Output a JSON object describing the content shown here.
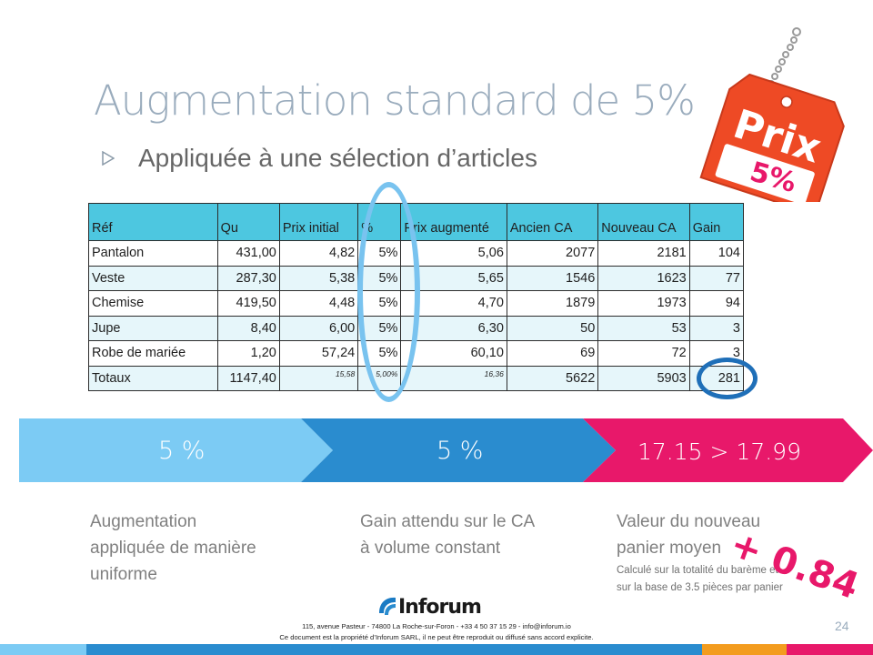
{
  "slide": {
    "title": "Augmentation standard de 5%",
    "subtitle": "Appliquée à une sélection d’articles",
    "page_number": "24"
  },
  "price_tag": {
    "word": "Prix",
    "value": "5%"
  },
  "table": {
    "headers": [
      "Réf",
      "Qu",
      "Prix initial",
      "%",
      "Prix augmenté",
      "Ancien CA",
      "Nouveau CA",
      "Gain"
    ],
    "rows": [
      [
        "Pantalon",
        "431,00",
        "4,82",
        "5%",
        "5,06",
        "2077",
        "2181",
        "104"
      ],
      [
        "Veste",
        "287,30",
        "5,38",
        "5%",
        "5,65",
        "1546",
        "1623",
        "77"
      ],
      [
        "Chemise",
        "419,50",
        "4,48",
        "5%",
        "4,70",
        "1879",
        "1973",
        "94"
      ],
      [
        "Jupe",
        "8,40",
        "6,00",
        "5%",
        "6,30",
        "50",
        "53",
        "3"
      ],
      [
        "Robe de mariée",
        "1,20",
        "57,24",
        "5%",
        "60,10",
        "69",
        "72",
        "3"
      ]
    ],
    "totals": [
      "Totaux",
      "1147,40",
      "15,58",
      "5,00%",
      "16,36",
      "5622",
      "5903",
      "281"
    ]
  },
  "banner": [
    {
      "label": "5 %",
      "color": "#7ccbf4"
    },
    {
      "label": "5 %",
      "color": "#2a8ccf"
    },
    {
      "label": "17.15 > 17.99",
      "color": "#e8186a"
    }
  ],
  "descriptions": {
    "col1": [
      "Augmentation",
      "appliquée de manière",
      "uniforme"
    ],
    "col2": [
      "Gain attendu sur le CA",
      "à volume constant"
    ],
    "col3": [
      "Valeur du nouveau",
      "panier moyen"
    ],
    "col3_note": [
      "Calculé sur la totalité du barème et",
      "sur la base de 3.5 pièces par panier"
    ],
    "bonus": "+ 0.84"
  },
  "footer": {
    "brand": "Inforum",
    "address": "115, avenue Pasteur - 74800 La Roche-sur-Foron - +33 4 50 37 15 29 - info@inforum.io",
    "notice": "Ce document est la propriété d’Inforum SARL, il ne peut être reproduit ou diffusé sans accord explicite."
  },
  "colors": {
    "accent_light": "#7ccbf4",
    "accent_dark": "#2a8ccf",
    "accent_pink": "#e8186a",
    "tag_red": "#ee4a25",
    "table_header": "#4dc7e0",
    "title_gray": "#9aacbd"
  }
}
